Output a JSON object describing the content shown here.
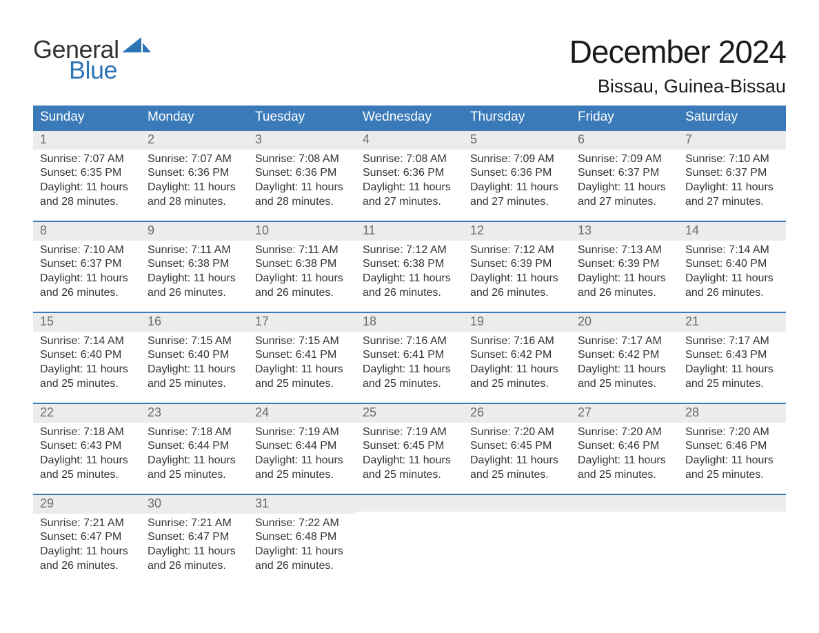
{
  "brand": {
    "word1": "General",
    "word2": "Blue",
    "logo_color": "#2d74b5",
    "text_color": "#333333"
  },
  "title": "December 2024",
  "location": "Bissau, Guinea-Bissau",
  "styling": {
    "header_bg": "#3a7ab8",
    "header_fg": "#ffffff",
    "daynum_bg": "#ececec",
    "daynum_fg": "#6b6b6b",
    "body_fg": "#333333",
    "row_border": "#3a7ab8",
    "title_fontsize": 46,
    "location_fontsize": 27,
    "dayhead_fontsize": 19,
    "body_fontsize": 16
  },
  "day_headers": [
    "Sunday",
    "Monday",
    "Tuesday",
    "Wednesday",
    "Thursday",
    "Friday",
    "Saturday"
  ],
  "labels": {
    "sunrise": "Sunrise: ",
    "sunset": "Sunset: ",
    "daylight": "Daylight: "
  },
  "weeks": [
    [
      {
        "n": "1",
        "sunrise": "7:07 AM",
        "sunset": "6:35 PM",
        "daylight": "11 hours and 28 minutes."
      },
      {
        "n": "2",
        "sunrise": "7:07 AM",
        "sunset": "6:36 PM",
        "daylight": "11 hours and 28 minutes."
      },
      {
        "n": "3",
        "sunrise": "7:08 AM",
        "sunset": "6:36 PM",
        "daylight": "11 hours and 28 minutes."
      },
      {
        "n": "4",
        "sunrise": "7:08 AM",
        "sunset": "6:36 PM",
        "daylight": "11 hours and 27 minutes."
      },
      {
        "n": "5",
        "sunrise": "7:09 AM",
        "sunset": "6:36 PM",
        "daylight": "11 hours and 27 minutes."
      },
      {
        "n": "6",
        "sunrise": "7:09 AM",
        "sunset": "6:37 PM",
        "daylight": "11 hours and 27 minutes."
      },
      {
        "n": "7",
        "sunrise": "7:10 AM",
        "sunset": "6:37 PM",
        "daylight": "11 hours and 27 minutes."
      }
    ],
    [
      {
        "n": "8",
        "sunrise": "7:10 AM",
        "sunset": "6:37 PM",
        "daylight": "11 hours and 26 minutes."
      },
      {
        "n": "9",
        "sunrise": "7:11 AM",
        "sunset": "6:38 PM",
        "daylight": "11 hours and 26 minutes."
      },
      {
        "n": "10",
        "sunrise": "7:11 AM",
        "sunset": "6:38 PM",
        "daylight": "11 hours and 26 minutes."
      },
      {
        "n": "11",
        "sunrise": "7:12 AM",
        "sunset": "6:38 PM",
        "daylight": "11 hours and 26 minutes."
      },
      {
        "n": "12",
        "sunrise": "7:12 AM",
        "sunset": "6:39 PM",
        "daylight": "11 hours and 26 minutes."
      },
      {
        "n": "13",
        "sunrise": "7:13 AM",
        "sunset": "6:39 PM",
        "daylight": "11 hours and 26 minutes."
      },
      {
        "n": "14",
        "sunrise": "7:14 AM",
        "sunset": "6:40 PM",
        "daylight": "11 hours and 26 minutes."
      }
    ],
    [
      {
        "n": "15",
        "sunrise": "7:14 AM",
        "sunset": "6:40 PM",
        "daylight": "11 hours and 25 minutes."
      },
      {
        "n": "16",
        "sunrise": "7:15 AM",
        "sunset": "6:40 PM",
        "daylight": "11 hours and 25 minutes."
      },
      {
        "n": "17",
        "sunrise": "7:15 AM",
        "sunset": "6:41 PM",
        "daylight": "11 hours and 25 minutes."
      },
      {
        "n": "18",
        "sunrise": "7:16 AM",
        "sunset": "6:41 PM",
        "daylight": "11 hours and 25 minutes."
      },
      {
        "n": "19",
        "sunrise": "7:16 AM",
        "sunset": "6:42 PM",
        "daylight": "11 hours and 25 minutes."
      },
      {
        "n": "20",
        "sunrise": "7:17 AM",
        "sunset": "6:42 PM",
        "daylight": "11 hours and 25 minutes."
      },
      {
        "n": "21",
        "sunrise": "7:17 AM",
        "sunset": "6:43 PM",
        "daylight": "11 hours and 25 minutes."
      }
    ],
    [
      {
        "n": "22",
        "sunrise": "7:18 AM",
        "sunset": "6:43 PM",
        "daylight": "11 hours and 25 minutes."
      },
      {
        "n": "23",
        "sunrise": "7:18 AM",
        "sunset": "6:44 PM",
        "daylight": "11 hours and 25 minutes."
      },
      {
        "n": "24",
        "sunrise": "7:19 AM",
        "sunset": "6:44 PM",
        "daylight": "11 hours and 25 minutes."
      },
      {
        "n": "25",
        "sunrise": "7:19 AM",
        "sunset": "6:45 PM",
        "daylight": "11 hours and 25 minutes."
      },
      {
        "n": "26",
        "sunrise": "7:20 AM",
        "sunset": "6:45 PM",
        "daylight": "11 hours and 25 minutes."
      },
      {
        "n": "27",
        "sunrise": "7:20 AM",
        "sunset": "6:46 PM",
        "daylight": "11 hours and 25 minutes."
      },
      {
        "n": "28",
        "sunrise": "7:20 AM",
        "sunset": "6:46 PM",
        "daylight": "11 hours and 25 minutes."
      }
    ],
    [
      {
        "n": "29",
        "sunrise": "7:21 AM",
        "sunset": "6:47 PM",
        "daylight": "11 hours and 26 minutes."
      },
      {
        "n": "30",
        "sunrise": "7:21 AM",
        "sunset": "6:47 PM",
        "daylight": "11 hours and 26 minutes."
      },
      {
        "n": "31",
        "sunrise": "7:22 AM",
        "sunset": "6:48 PM",
        "daylight": "11 hours and 26 minutes."
      },
      null,
      null,
      null,
      null
    ]
  ]
}
